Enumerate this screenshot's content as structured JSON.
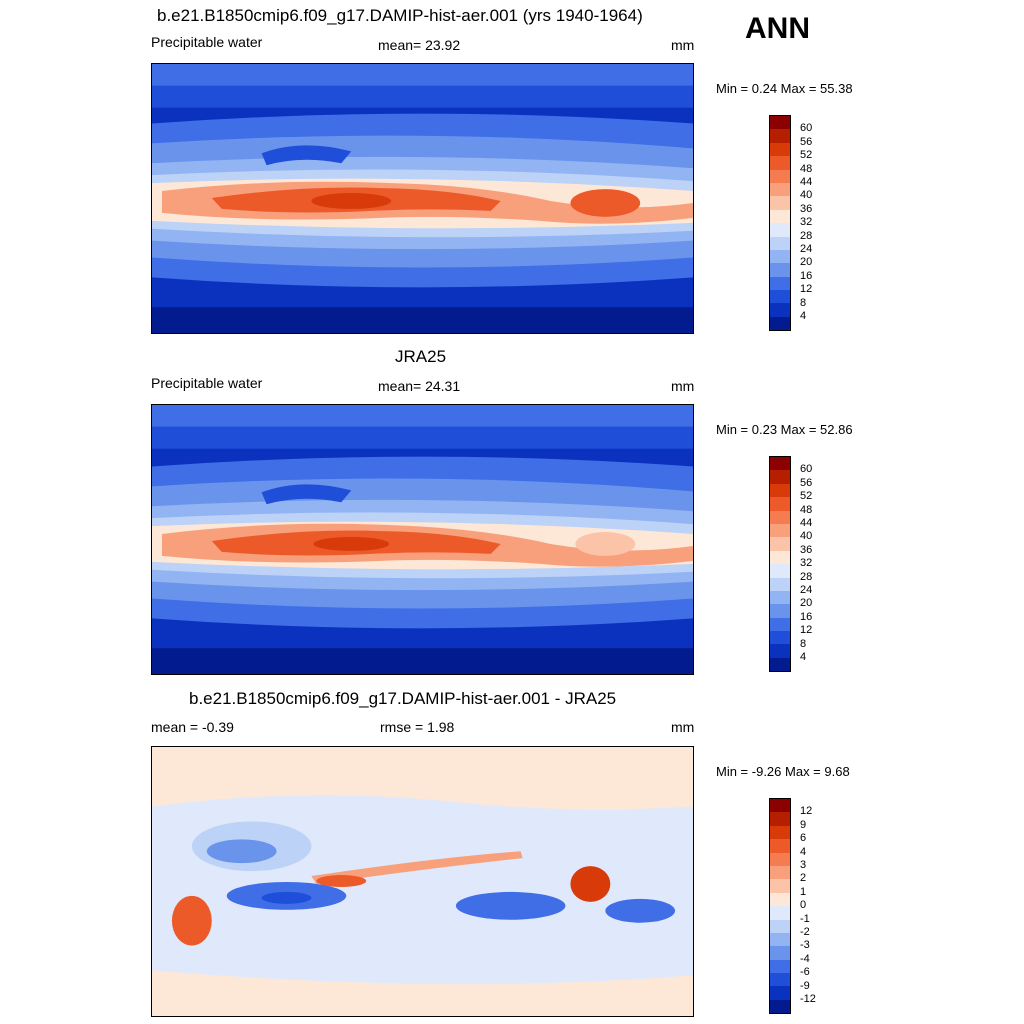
{
  "season": "ANN",
  "panels": [
    {
      "title": "b.e21.B1850cmip6.f09_g17.DAMIP-hist-aer.001 (yrs 1940-1964)",
      "left_label": "Precipitable water",
      "center_label": "mean=  23.92",
      "units": "mm",
      "minmax": "Min =   0.24 Max =  55.38",
      "kind": "abs"
    },
    {
      "title": "JRA25",
      "left_label": "Precipitable water",
      "center_label": "mean=  24.31",
      "units": "mm",
      "minmax": "Min =   0.23 Max =  52.86",
      "kind": "abs"
    },
    {
      "title": "b.e21.B1850cmip6.f09_g17.DAMIP-hist-aer.001 - JRA25",
      "left_label": "mean =  -0.39",
      "center_label": "rmse =   1.98",
      "units": "mm",
      "minmax": "Min =  -9.26 Max =   9.68",
      "kind": "diff"
    }
  ],
  "abs_legend": {
    "labels": [
      "60",
      "56",
      "52",
      "48",
      "44",
      "40",
      "36",
      "32",
      "28",
      "24",
      "20",
      "16",
      "12",
      "8",
      "4"
    ],
    "colors": [
      "#8b0000",
      "#b51f00",
      "#d83a0a",
      "#ed5a2a",
      "#f47c50",
      "#f8a07c",
      "#fbc4a8",
      "#fde7d6",
      "#dfe9fb",
      "#bcd2f7",
      "#93b4f2",
      "#6a93ec",
      "#3f6ee6",
      "#1f4fd9",
      "#0a32bf",
      "#021c90"
    ]
  },
  "diff_legend": {
    "labels": [
      "12",
      "9",
      "6",
      "4",
      "3",
      "2",
      "1",
      "0",
      "-1",
      "-2",
      "-3",
      "-4",
      "-6",
      "-9",
      "-12"
    ],
    "colors": [
      "#8b0000",
      "#b51f00",
      "#d83a0a",
      "#ed5a2a",
      "#f47c50",
      "#f8a07c",
      "#fbc4a8",
      "#fde7d6",
      "#dfe9fb",
      "#bcd2f7",
      "#93b4f2",
      "#6a93ec",
      "#3f6ee6",
      "#1f4fd9",
      "#0a32bf",
      "#021c90"
    ]
  }
}
